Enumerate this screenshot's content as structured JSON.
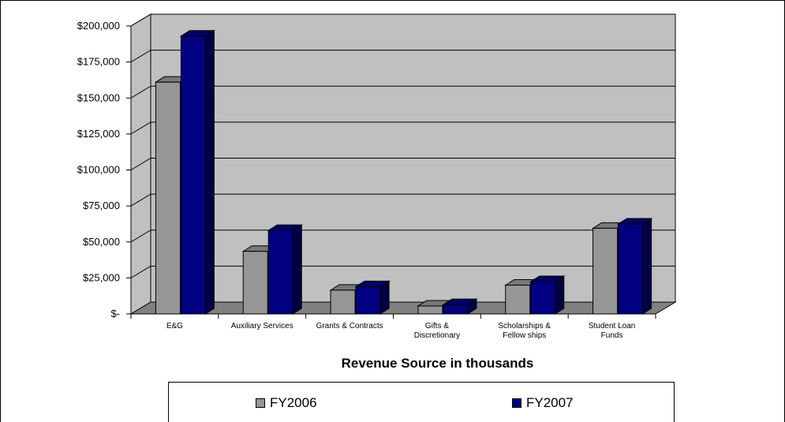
{
  "chart_data": {
    "type": "bar",
    "categories": [
      [
        "E&G"
      ],
      [
        "Auxiliary Services"
      ],
      [
        "Grants & Contracts"
      ],
      [
        "Gifts &",
        "Discretionary"
      ],
      [
        "Scholarships &",
        "Fellow ships"
      ],
      [
        "Student Loan",
        "Funds"
      ]
    ],
    "series": [
      {
        "name": "FY2006",
        "color": "#969696",
        "values": [
          161000,
          43500,
          16500,
          5500,
          20000,
          59500
        ]
      },
      {
        "name": "FY2007",
        "color": "#000080",
        "values": [
          193000,
          58000,
          19000,
          6500,
          22500,
          62500
        ]
      }
    ],
    "yticks": [
      "$-",
      "$25,000",
      "$50,000",
      "$75,000",
      "$100,000",
      "$125,000",
      "$150,000",
      "$175,000",
      "$200,000"
    ],
    "ylim": [
      0,
      200000
    ],
    "xlabel": "Revenue Source in thousands",
    "ylabel": "",
    "title": "",
    "grid": true,
    "legend": "bottom"
  }
}
